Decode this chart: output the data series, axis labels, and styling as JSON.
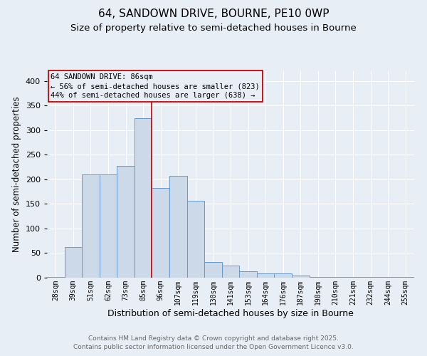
{
  "title1": "64, SANDOWN DRIVE, BOURNE, PE10 0WP",
  "title2": "Size of property relative to semi-detached houses in Bourne",
  "xlabel": "Distribution of semi-detached houses by size in Bourne",
  "ylabel": "Number of semi-detached properties",
  "categories": [
    "28sqm",
    "39sqm",
    "51sqm",
    "62sqm",
    "73sqm",
    "85sqm",
    "96sqm",
    "107sqm",
    "119sqm",
    "130sqm",
    "141sqm",
    "153sqm",
    "164sqm",
    "176sqm",
    "187sqm",
    "198sqm",
    "210sqm",
    "221sqm",
    "232sqm",
    "244sqm",
    "255sqm"
  ],
  "values": [
    2,
    62,
    210,
    210,
    228,
    325,
    182,
    207,
    156,
    32,
    25,
    13,
    9,
    9,
    5,
    2,
    2,
    1,
    1,
    2,
    2
  ],
  "bar_color": "#ccd9e8",
  "bar_edge_color": "#6699cc",
  "vline_bin_index": 5,
  "annotation_color": "#cc0000",
  "annotation_title": "64 SANDOWN DRIVE: 86sqm",
  "annotation_line1": "← 56% of semi-detached houses are smaller (823)",
  "annotation_line2": "44% of semi-detached houses are larger (638) →",
  "ylim": [
    0,
    420
  ],
  "yticks": [
    0,
    50,
    100,
    150,
    200,
    250,
    300,
    350,
    400
  ],
  "footnote1": "Contains HM Land Registry data © Crown copyright and database right 2025.",
  "footnote2": "Contains public sector information licensed under the Open Government Licence v3.0.",
  "title1_fontsize": 11,
  "title2_fontsize": 9.5,
  "xlabel_fontsize": 9,
  "ylabel_fontsize": 8.5,
  "tick_fontsize": 7,
  "footnote_fontsize": 6.5,
  "annotation_fontsize": 7.5,
  "background_color": "#e8eef5"
}
